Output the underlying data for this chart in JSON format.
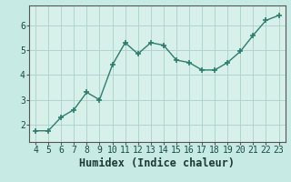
{
  "x": [
    4,
    5,
    6,
    7,
    8,
    9,
    10,
    11,
    12,
    13,
    14,
    15,
    16,
    17,
    18,
    19,
    20,
    21,
    22,
    23
  ],
  "y": [
    1.75,
    1.75,
    2.3,
    2.6,
    3.3,
    3.0,
    4.4,
    5.3,
    4.85,
    5.3,
    5.2,
    4.6,
    4.5,
    4.2,
    4.2,
    4.5,
    4.95,
    5.6,
    6.2,
    6.4
  ],
  "line_color": "#2d7d6e",
  "marker": "+",
  "marker_size": 4,
  "marker_linewidth": 1.2,
  "line_width": 1.0,
  "bg_color": "#c8eae4",
  "grid_color": "#b0d4cc",
  "axis_bg": "#d8f0ea",
  "xlabel": "Humidex (Indice chaleur)",
  "xlabel_fontsize": 8.5,
  "tick_fontsize": 7,
  "xlim": [
    3.5,
    23.5
  ],
  "ylim": [
    1.3,
    6.8
  ],
  "yticks": [
    2,
    3,
    4,
    5,
    6
  ],
  "xticks": [
    4,
    5,
    6,
    7,
    8,
    9,
    10,
    11,
    12,
    13,
    14,
    15,
    16,
    17,
    18,
    19,
    20,
    21,
    22,
    23
  ]
}
